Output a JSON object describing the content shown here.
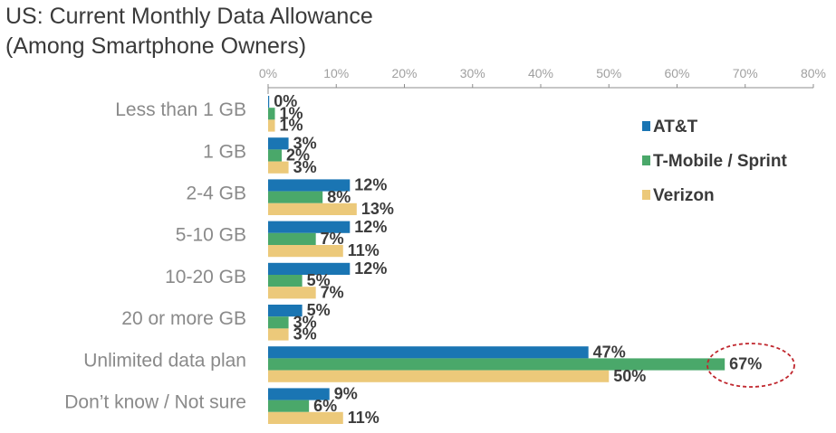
{
  "chart_data": {
    "type": "bar",
    "orientation": "horizontal",
    "title": "US: Current Monthly Data Allowance",
    "subtitle": "(Among Smartphone Owners)",
    "xlabel": "",
    "ylabel": "",
    "xlim": [
      0,
      80
    ],
    "x_ticks": [
      "0%",
      "10%",
      "20%",
      "30%",
      "40%",
      "50%",
      "60%",
      "70%",
      "80%"
    ],
    "grid": false,
    "legend_position": "top-right",
    "categories": [
      "Less than 1 GB",
      "1 GB",
      "2-4 GB",
      "5-10 GB",
      "10-20 GB",
      "20 or more GB",
      "Unlimited data plan",
      "Don’t know / Not sure"
    ],
    "series": [
      {
        "name": "AT&T",
        "color": "#1a75b3",
        "values": [
          0,
          3,
          12,
          12,
          12,
          5,
          47,
          9
        ],
        "labels": [
          "0%",
          "3%",
          "12%",
          "12%",
          "12%",
          "5%",
          "47%",
          "9%"
        ]
      },
      {
        "name": "T-Mobile / Sprint",
        "color": "#4aa86a",
        "values": [
          1,
          2,
          8,
          7,
          5,
          3,
          67,
          6
        ],
        "labels": [
          "1%",
          "2%",
          "8%",
          "7%",
          "5%",
          "3%",
          "67%",
          "6%"
        ]
      },
      {
        "name": "Verizon",
        "color": "#ecc97a",
        "values": [
          1,
          3,
          13,
          11,
          7,
          3,
          50,
          11
        ],
        "labels": [
          "1%",
          "3%",
          "13%",
          "11%",
          "7%",
          "3%",
          "50%",
          "11%"
        ]
      }
    ],
    "annotations": [
      {
        "type": "dashed-ellipse",
        "target": "T-Mobile / Sprint — Unlimited data plan",
        "label": "67%",
        "color": "#c0262d"
      }
    ]
  }
}
